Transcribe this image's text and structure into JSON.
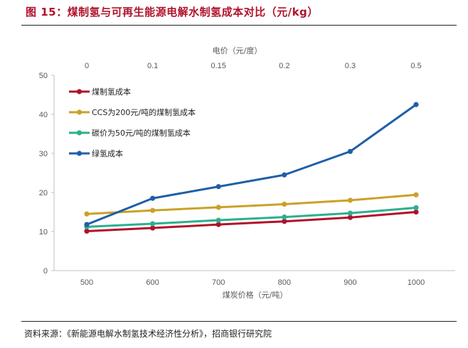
{
  "figure": {
    "title": "图 15：煤制氢与可再生能源电解水制氢成本对比（元/kg）",
    "source": "资料来源：《新能源电解水制氢技术经济性分析》，招商银行研究院"
  },
  "chart_data": {
    "type": "line",
    "xlabel": "煤炭价格（元/吨）",
    "x2label": "电价（元/度）",
    "categories": [
      "500",
      "600",
      "700",
      "800",
      "900",
      "1000"
    ],
    "top_categories": [
      "0",
      "0.1",
      "0.15",
      "0.2",
      "0.3",
      "0.5"
    ],
    "ylim": [
      0,
      50
    ],
    "yticks": [
      "0",
      "10",
      "20",
      "30",
      "40",
      "50"
    ],
    "grid": false,
    "legend_position": "top-left",
    "series": [
      {
        "name": "煤制氢成本",
        "color": "#b0122a",
        "values": [
          10.1,
          10.9,
          11.8,
          12.6,
          13.6,
          15.0
        ]
      },
      {
        "name": "CCS为200元/吨的煤制氢成本",
        "color": "#c9a227",
        "values": [
          14.5,
          15.4,
          16.2,
          17.0,
          18.0,
          19.4
        ]
      },
      {
        "name": "碳价为50元/吨的煤制氢成本",
        "color": "#2bb08e",
        "values": [
          11.2,
          12.0,
          12.9,
          13.7,
          14.7,
          16.1
        ]
      },
      {
        "name": "绿氢成本",
        "color": "#1f5fa6",
        "values": [
          11.8,
          18.5,
          21.5,
          24.5,
          30.5,
          42.5
        ]
      }
    ]
  }
}
